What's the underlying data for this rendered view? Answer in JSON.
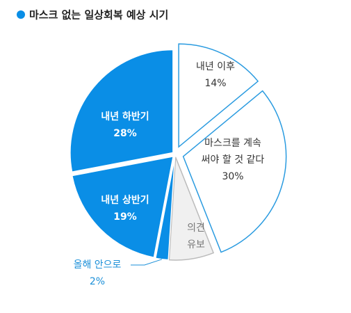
{
  "chart_data": {
    "type": "pie",
    "title": "마스크 없는 일상회복 예상 시기",
    "categories": [
      [
        "내년 이후"
      ],
      [
        "마스크를 계속",
        "써야 할 것 같다"
      ],
      [
        "의견",
        "유보"
      ],
      [
        "올해 안으로"
      ],
      [
        "내년 상반기"
      ],
      [
        "내년 하반기"
      ]
    ],
    "values": [
      14,
      30,
      7,
      2,
      19,
      28
    ],
    "value_labels": [
      "14%",
      "30%",
      null,
      "2%",
      "19%",
      "28%"
    ],
    "colors": [
      "#ffffff",
      "#ffffff",
      "#f0f0f0",
      "#0a8ee6",
      "#0a8ee6",
      "#0a8ee6"
    ],
    "stroke_colors": [
      "#2a9be0",
      "#2a9be0",
      "#bbbbbb",
      "#ffffff",
      "#ffffff",
      "#ffffff"
    ],
    "text_colors": [
      "#333333",
      "#333333",
      "#777777",
      "#1a8fd8",
      "#ffffff",
      "#ffffff"
    ],
    "title_marker_color": "#0a8ee6"
  }
}
